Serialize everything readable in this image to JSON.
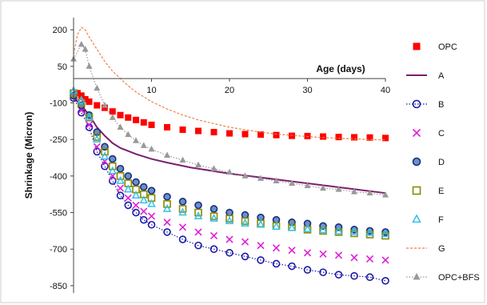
{
  "chart_data": {
    "type": "line",
    "xlabel": "Age (days)",
    "ylabel": "Shrinkage (Micron)",
    "xlim": [
      0,
      40
    ],
    "ylim": [
      -880,
      250
    ],
    "x_ticks": [
      10,
      20,
      30,
      40
    ],
    "y_ticks": [
      200,
      50,
      -100,
      -250,
      -400,
      -550,
      -700,
      -850
    ],
    "legend_position": "right",
    "grid": false,
    "series": [
      {
        "name": "OPC",
        "color": "#ff0000",
        "marker": "square",
        "line": "none",
        "points": [
          [
            0.5,
            -60
          ],
          [
            1,
            -70
          ],
          [
            1.5,
            -85
          ],
          [
            2,
            -95
          ],
          [
            3,
            -110
          ],
          [
            4,
            -120
          ],
          [
            5,
            -135
          ],
          [
            6,
            -150
          ],
          [
            7,
            -160
          ],
          [
            8,
            -170
          ],
          [
            9,
            -180
          ],
          [
            10,
            -190
          ],
          [
            12,
            -200
          ],
          [
            14,
            -210
          ],
          [
            16,
            -215
          ],
          [
            18,
            -220
          ],
          [
            20,
            -225
          ],
          [
            22,
            -228
          ],
          [
            24,
            -230
          ],
          [
            26,
            -232
          ],
          [
            28,
            -235
          ],
          [
            30,
            -236
          ],
          [
            32,
            -238
          ],
          [
            34,
            -240
          ],
          [
            36,
            -241
          ],
          [
            38,
            -242
          ],
          [
            40,
            -244
          ]
        ]
      },
      {
        "name": "A",
        "color": "#7b1f6e",
        "marker": "none",
        "line": "solid",
        "points": [
          [
            0,
            -80
          ],
          [
            1,
            -110
          ],
          [
            2,
            -150
          ],
          [
            3,
            -200
          ],
          [
            4,
            -235
          ],
          [
            5,
            -265
          ],
          [
            6,
            -285
          ],
          [
            8,
            -310
          ],
          [
            10,
            -330
          ],
          [
            12,
            -345
          ],
          [
            15,
            -365
          ],
          [
            20,
            -390
          ],
          [
            25,
            -410
          ],
          [
            30,
            -430
          ],
          [
            35,
            -450
          ],
          [
            40,
            -470
          ]
        ]
      },
      {
        "name": "B",
        "color": "#1a1aa8",
        "marker": "circle-open",
        "line": "dotted",
        "points": [
          [
            0,
            -80
          ],
          [
            1,
            -140
          ],
          [
            2,
            -200
          ],
          [
            3,
            -300
          ],
          [
            4,
            -360
          ],
          [
            5,
            -420
          ],
          [
            6,
            -480
          ],
          [
            7,
            -520
          ],
          [
            8,
            -550
          ],
          [
            9,
            -580
          ],
          [
            10,
            -600
          ],
          [
            12,
            -630
          ],
          [
            14,
            -660
          ],
          [
            16,
            -685
          ],
          [
            18,
            -700
          ],
          [
            20,
            -715
          ],
          [
            22,
            -730
          ],
          [
            24,
            -745
          ],
          [
            26,
            -760
          ],
          [
            28,
            -770
          ],
          [
            30,
            -785
          ],
          [
            32,
            -795
          ],
          [
            34,
            -805
          ],
          [
            36,
            -810
          ],
          [
            38,
            -815
          ],
          [
            40,
            -830
          ]
        ]
      },
      {
        "name": "C",
        "color": "#e020d8",
        "marker": "x",
        "line": "none",
        "points": [
          [
            0,
            -70
          ],
          [
            1,
            -130
          ],
          [
            2,
            -190
          ],
          [
            3,
            -280
          ],
          [
            4,
            -340
          ],
          [
            5,
            -400
          ],
          [
            6,
            -450
          ],
          [
            7,
            -490
          ],
          [
            8,
            -520
          ],
          [
            9,
            -545
          ],
          [
            10,
            -565
          ],
          [
            12,
            -590
          ],
          [
            14,
            -610
          ],
          [
            16,
            -630
          ],
          [
            18,
            -645
          ],
          [
            20,
            -660
          ],
          [
            22,
            -670
          ],
          [
            24,
            -685
          ],
          [
            26,
            -695
          ],
          [
            28,
            -705
          ],
          [
            30,
            -715
          ],
          [
            32,
            -720
          ],
          [
            34,
            -725
          ],
          [
            36,
            -735
          ],
          [
            38,
            -740
          ],
          [
            40,
            -745
          ]
        ]
      },
      {
        "name": "D",
        "color": "#1f4fa8",
        "marker": "circle-filled",
        "line": "none",
        "points": [
          [
            0,
            -70
          ],
          [
            1,
            -110
          ],
          [
            2,
            -150
          ],
          [
            3,
            -220
          ],
          [
            4,
            -280
          ],
          [
            5,
            -330
          ],
          [
            6,
            -370
          ],
          [
            7,
            -400
          ],
          [
            8,
            -425
          ],
          [
            9,
            -445
          ],
          [
            10,
            -460
          ],
          [
            12,
            -485
          ],
          [
            14,
            -505
          ],
          [
            16,
            -520
          ],
          [
            18,
            -535
          ],
          [
            20,
            -550
          ],
          [
            22,
            -560
          ],
          [
            24,
            -570
          ],
          [
            26,
            -580
          ],
          [
            28,
            -590
          ],
          [
            30,
            -595
          ],
          [
            32,
            -605
          ],
          [
            34,
            -610
          ],
          [
            36,
            -620
          ],
          [
            38,
            -625
          ],
          [
            40,
            -630
          ]
        ]
      },
      {
        "name": "E",
        "color": "#8a8a00",
        "marker": "square-open",
        "line": "none",
        "points": [
          [
            0,
            -60
          ],
          [
            1,
            -100
          ],
          [
            2,
            -160
          ],
          [
            3,
            -240
          ],
          [
            4,
            -300
          ],
          [
            5,
            -360
          ],
          [
            6,
            -400
          ],
          [
            7,
            -430
          ],
          [
            8,
            -455
          ],
          [
            9,
            -475
          ],
          [
            10,
            -490
          ],
          [
            12,
            -515
          ],
          [
            14,
            -535
          ],
          [
            16,
            -550
          ],
          [
            18,
            -565
          ],
          [
            20,
            -575
          ],
          [
            22,
            -585
          ],
          [
            24,
            -595
          ],
          [
            26,
            -605
          ],
          [
            28,
            -610
          ],
          [
            30,
            -620
          ],
          [
            32,
            -625
          ],
          [
            34,
            -630
          ],
          [
            36,
            -635
          ],
          [
            38,
            -640
          ],
          [
            40,
            -645
          ]
        ]
      },
      {
        "name": "F",
        "color": "#33c0e8",
        "marker": "triangle-open",
        "line": "none",
        "points": [
          [
            0,
            -50
          ],
          [
            1,
            -90
          ],
          [
            2,
            -160
          ],
          [
            3,
            -250
          ],
          [
            4,
            -320
          ],
          [
            5,
            -380
          ],
          [
            6,
            -420
          ],
          [
            7,
            -455
          ],
          [
            8,
            -480
          ],
          [
            9,
            -500
          ],
          [
            10,
            -515
          ],
          [
            12,
            -535
          ],
          [
            14,
            -550
          ],
          [
            16,
            -565
          ],
          [
            18,
            -575
          ],
          [
            20,
            -585
          ],
          [
            22,
            -595
          ],
          [
            24,
            -600
          ],
          [
            26,
            -608
          ],
          [
            28,
            -613
          ],
          [
            30,
            -618
          ],
          [
            32,
            -622
          ],
          [
            34,
            -627
          ],
          [
            36,
            -630
          ],
          [
            38,
            -634
          ],
          [
            40,
            -638
          ]
        ]
      },
      {
        "name": "G",
        "color": "#f08040",
        "marker": "none",
        "line": "dashed",
        "points": [
          [
            0,
            100
          ],
          [
            0.5,
            180
          ],
          [
            1,
            210
          ],
          [
            1.5,
            200
          ],
          [
            2,
            170
          ],
          [
            3,
            120
          ],
          [
            4,
            70
          ],
          [
            5,
            30
          ],
          [
            6,
            0
          ],
          [
            7,
            -30
          ],
          [
            8,
            -55
          ],
          [
            9,
            -75
          ],
          [
            10,
            -95
          ],
          [
            12,
            -125
          ],
          [
            14,
            -150
          ],
          [
            16,
            -170
          ],
          [
            18,
            -185
          ],
          [
            20,
            -200
          ],
          [
            22,
            -210
          ],
          [
            24,
            -220
          ],
          [
            26,
            -228
          ],
          [
            28,
            -233
          ],
          [
            30,
            -238
          ],
          [
            32,
            -242
          ],
          [
            34,
            -245
          ],
          [
            36,
            -248
          ],
          [
            38,
            -250
          ],
          [
            40,
            -252
          ]
        ]
      },
      {
        "name": "OPC+BFS",
        "color": "#999999",
        "marker": "triangle-filled",
        "line": "dotted",
        "points": [
          [
            0,
            80
          ],
          [
            1,
            140
          ],
          [
            1.5,
            120
          ],
          [
            2,
            50
          ],
          [
            3,
            -40
          ],
          [
            4,
            -110
          ],
          [
            5,
            -160
          ],
          [
            6,
            -200
          ],
          [
            7,
            -230
          ],
          [
            8,
            -255
          ],
          [
            9,
            -275
          ],
          [
            10,
            -290
          ],
          [
            12,
            -315
          ],
          [
            14,
            -335
          ],
          [
            16,
            -355
          ],
          [
            18,
            -370
          ],
          [
            20,
            -385
          ],
          [
            22,
            -400
          ],
          [
            24,
            -410
          ],
          [
            26,
            -420
          ],
          [
            28,
            -430
          ],
          [
            30,
            -440
          ],
          [
            32,
            -450
          ],
          [
            34,
            -455
          ],
          [
            36,
            -465
          ],
          [
            38,
            -470
          ],
          [
            40,
            -478
          ]
        ]
      }
    ]
  }
}
